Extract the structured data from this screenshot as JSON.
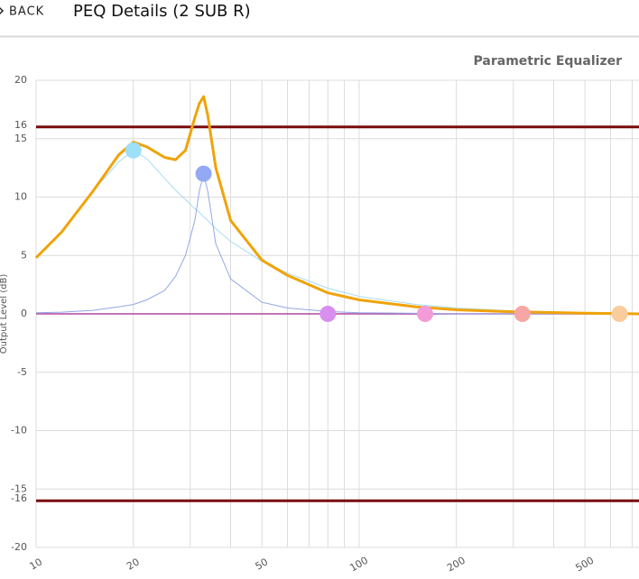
{
  "header": {
    "back": "BACK",
    "title": "PEQ Details (2 SUB R)"
  },
  "chart_data": {
    "type": "line",
    "title": "Parametric Equalizer",
    "y_label": "Output Level (dB)",
    "log_x": true,
    "grid": true,
    "xlim": [
      10,
      735
    ],
    "ylim": [
      -20,
      20
    ],
    "xticks": [
      10,
      20,
      50,
      100,
      200,
      500
    ],
    "xminor": [
      30,
      40,
      60,
      70,
      80,
      90,
      300,
      400,
      600,
      700
    ],
    "yticks": [
      20,
      15,
      10,
      5,
      0,
      -5,
      -10,
      -15,
      -20
    ],
    "limit_lines": {
      "values": [
        16,
        -16
      ],
      "color": "#7a0a0a"
    },
    "zero_line_color": "#b0479e",
    "x": [
      10,
      12,
      15,
      18,
      20,
      22,
      25,
      27,
      29,
      31,
      32,
      33,
      34,
      36,
      40,
      50,
      60,
      80,
      100,
      150,
      200,
      300,
      500,
      735
    ],
    "series": [
      {
        "color": "#a9dcf2",
        "width": 1,
        "values": [
          4.8,
          7,
          10.5,
          13,
          14,
          13.3,
          11.6,
          10.6,
          9.8,
          9,
          8.7,
          8.3,
          8,
          7.3,
          6.2,
          4.5,
          3.5,
          2.2,
          1.5,
          0.8,
          0.5,
          0.25,
          0.1,
          0.05
        ]
      },
      {
        "color": "#93a8e6",
        "width": 1,
        "values": [
          0.1,
          0.15,
          0.3,
          0.6,
          0.8,
          1.2,
          2,
          3.2,
          5,
          8,
          10.5,
          12,
          10.5,
          6,
          3,
          1,
          0.5,
          0.2,
          0.1,
          0.05,
          0,
          0,
          0,
          0
        ]
      },
      {
        "color": "#f0a30a",
        "width": 3,
        "values": [
          4.8,
          7,
          10.5,
          13.6,
          14.7,
          14.3,
          13.4,
          13.2,
          14,
          16.8,
          18,
          18.6,
          17,
          12.5,
          8,
          4.6,
          3.3,
          1.8,
          1.2,
          0.6,
          0.35,
          0.18,
          0.06,
          0
        ]
      }
    ],
    "filters": {
      "x": [
        20,
        33,
        80,
        160,
        320,
        640
      ],
      "gain": [
        14,
        12,
        0,
        0,
        0,
        0
      ],
      "colors": [
        "#9ee0f8",
        "#94a9f4",
        "#d88ff0",
        "#f29bd8",
        "#f6a7a5",
        "#f8cd9b"
      ]
    }
  }
}
